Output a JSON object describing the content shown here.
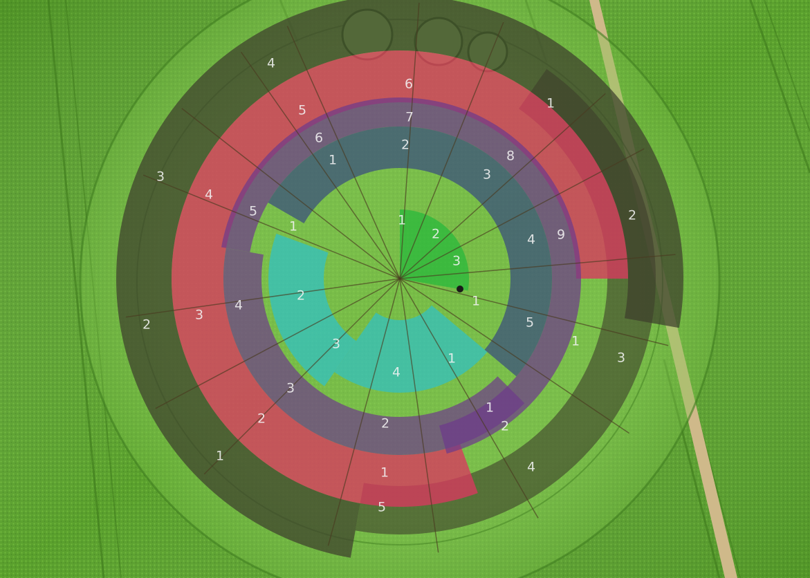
{
  "scene": {
    "subject": "crop-circle",
    "ring_colors": {
      "outer": "#3d3e2c",
      "red": "#d8385f",
      "purple": "#6e3a8a",
      "blue": "#394c7e",
      "teal": "#2fc1c8",
      "green": "#25b83b"
    }
  },
  "labels": {
    "outer": [
      "1",
      "2",
      "3",
      "4",
      "1",
      "2",
      "3",
      "4",
      "5"
    ],
    "red": [
      "1",
      "2",
      "3",
      "4",
      "5",
      "6",
      "1",
      "2"
    ],
    "purple": [
      "2",
      "3",
      "4",
      "5",
      "6",
      "7",
      "8",
      "9",
      "1"
    ],
    "blue": [
      "1",
      "2",
      "3",
      "4",
      "5"
    ],
    "teal": [
      "1",
      "2",
      "3",
      "4",
      "1"
    ],
    "green": [
      "1",
      "2",
      "3",
      "1"
    ]
  }
}
